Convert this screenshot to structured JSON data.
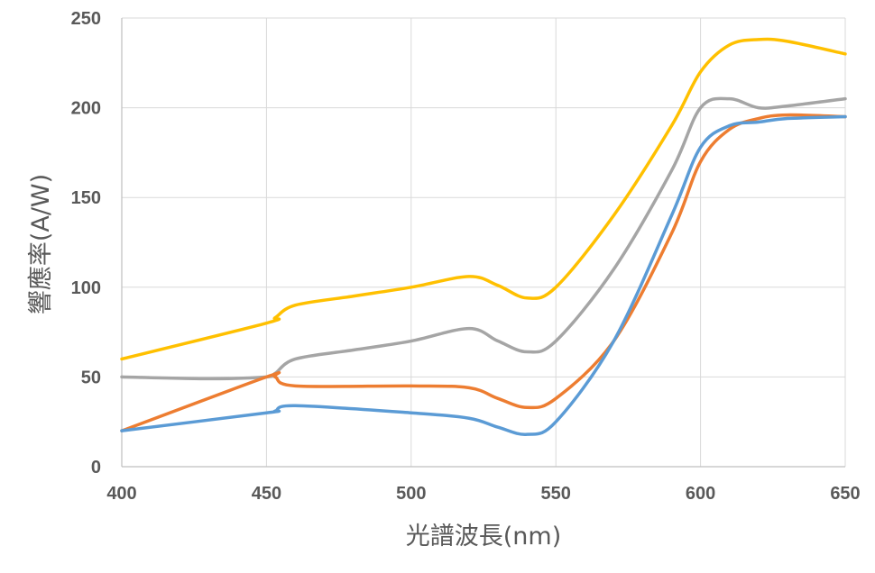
{
  "chart_data": {
    "type": "line",
    "title": "",
    "xlabel": "光譜波長(nm)",
    "ylabel": "響應率(A/W)",
    "xlim": [
      400,
      650
    ],
    "ylim": [
      0,
      250
    ],
    "x_ticks": [
      "400",
      "450",
      "500",
      "550",
      "600",
      "650"
    ],
    "y_ticks": [
      "0",
      "50",
      "100",
      "150",
      "200",
      "250"
    ],
    "grid": true,
    "legend": "none",
    "series": [
      {
        "color": "#FFC000",
        "points": [
          [
            400,
            60
          ],
          [
            450,
            80
          ],
          [
            453,
            83
          ],
          [
            460,
            90
          ],
          [
            480,
            95
          ],
          [
            500,
            100
          ],
          [
            520,
            106
          ],
          [
            530,
            101
          ],
          [
            540,
            94
          ],
          [
            550,
            100
          ],
          [
            570,
            140
          ],
          [
            590,
            190
          ],
          [
            600,
            220
          ],
          [
            610,
            235
          ],
          [
            620,
            238
          ],
          [
            630,
            237
          ],
          [
            650,
            230
          ]
        ]
      },
      {
        "color": "#A5A5A5",
        "points": [
          [
            400,
            50
          ],
          [
            430,
            49
          ],
          [
            450,
            50
          ],
          [
            453,
            52
          ],
          [
            460,
            60
          ],
          [
            480,
            65
          ],
          [
            500,
            70
          ],
          [
            520,
            77
          ],
          [
            530,
            70
          ],
          [
            540,
            64
          ],
          [
            550,
            70
          ],
          [
            570,
            110
          ],
          [
            590,
            165
          ],
          [
            600,
            200
          ],
          [
            610,
            205
          ],
          [
            620,
            200
          ],
          [
            630,
            201
          ],
          [
            650,
            205
          ]
        ]
      },
      {
        "color": "#ED7D31",
        "points": [
          [
            400,
            20
          ],
          [
            450,
            50
          ],
          [
            453,
            50
          ],
          [
            460,
            45
          ],
          [
            500,
            45
          ],
          [
            520,
            44
          ],
          [
            530,
            38
          ],
          [
            540,
            33
          ],
          [
            550,
            38
          ],
          [
            570,
            70
          ],
          [
            590,
            130
          ],
          [
            600,
            170
          ],
          [
            610,
            188
          ],
          [
            620,
            194
          ],
          [
            630,
            196
          ],
          [
            650,
            195
          ]
        ]
      },
      {
        "color": "#5B9BD5",
        "points": [
          [
            400,
            20
          ],
          [
            450,
            30
          ],
          [
            453,
            31
          ],
          [
            460,
            34
          ],
          [
            500,
            30
          ],
          [
            520,
            27
          ],
          [
            530,
            22
          ],
          [
            540,
            18
          ],
          [
            550,
            25
          ],
          [
            570,
            70
          ],
          [
            590,
            140
          ],
          [
            600,
            178
          ],
          [
            610,
            190
          ],
          [
            620,
            192
          ],
          [
            630,
            194
          ],
          [
            650,
            195
          ]
        ]
      }
    ]
  }
}
